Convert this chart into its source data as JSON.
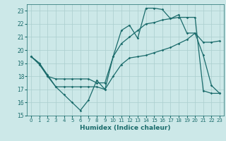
{
  "xlabel": "Humidex (Indice chaleur)",
  "bg_color": "#cce8e8",
  "grid_color": "#aacece",
  "line_color": "#1a6b6b",
  "xlim": [
    -0.5,
    23.5
  ],
  "ylim": [
    15,
    23.5
  ],
  "yticks": [
    15,
    16,
    17,
    18,
    19,
    20,
    21,
    22,
    23
  ],
  "xticks": [
    0,
    1,
    2,
    3,
    4,
    5,
    6,
    7,
    8,
    9,
    10,
    11,
    12,
    13,
    14,
    15,
    16,
    17,
    18,
    19,
    20,
    21,
    22,
    23
  ],
  "line1_x": [
    0,
    1,
    2,
    3,
    4,
    5,
    6,
    7,
    8,
    9,
    10,
    11,
    12,
    13,
    14,
    15,
    16,
    17,
    18,
    19,
    20,
    21,
    22,
    23
  ],
  "line1_y": [
    19.5,
    18.9,
    18.0,
    17.2,
    16.6,
    16.0,
    15.4,
    16.2,
    17.7,
    17.0,
    19.5,
    21.5,
    21.9,
    20.9,
    23.2,
    23.2,
    23.1,
    22.4,
    22.7,
    21.3,
    21.3,
    19.6,
    17.3,
    16.7
  ],
  "line2_x": [
    0,
    1,
    2,
    3,
    4,
    5,
    6,
    7,
    8,
    9,
    10,
    11,
    12,
    13,
    14,
    15,
    16,
    17,
    18,
    19,
    20,
    21,
    22,
    23
  ],
  "line2_y": [
    19.5,
    19.0,
    18.1,
    17.2,
    17.2,
    17.2,
    17.2,
    17.2,
    17.2,
    17.0,
    18.0,
    18.9,
    19.4,
    19.5,
    19.6,
    19.8,
    20.0,
    20.2,
    20.5,
    20.8,
    21.3,
    20.6,
    20.6,
    20.7
  ],
  "line3_x": [
    0,
    1,
    2,
    3,
    4,
    5,
    6,
    7,
    8,
    9,
    10,
    11,
    12,
    13,
    14,
    15,
    16,
    17,
    18,
    19,
    20,
    21,
    22,
    23
  ],
  "line3_y": [
    19.5,
    19.0,
    18.0,
    17.8,
    17.8,
    17.8,
    17.8,
    17.8,
    17.5,
    17.5,
    19.5,
    20.5,
    21.0,
    21.5,
    22.0,
    22.1,
    22.3,
    22.4,
    22.5,
    22.5,
    22.5,
    16.9,
    16.7,
    16.7
  ]
}
